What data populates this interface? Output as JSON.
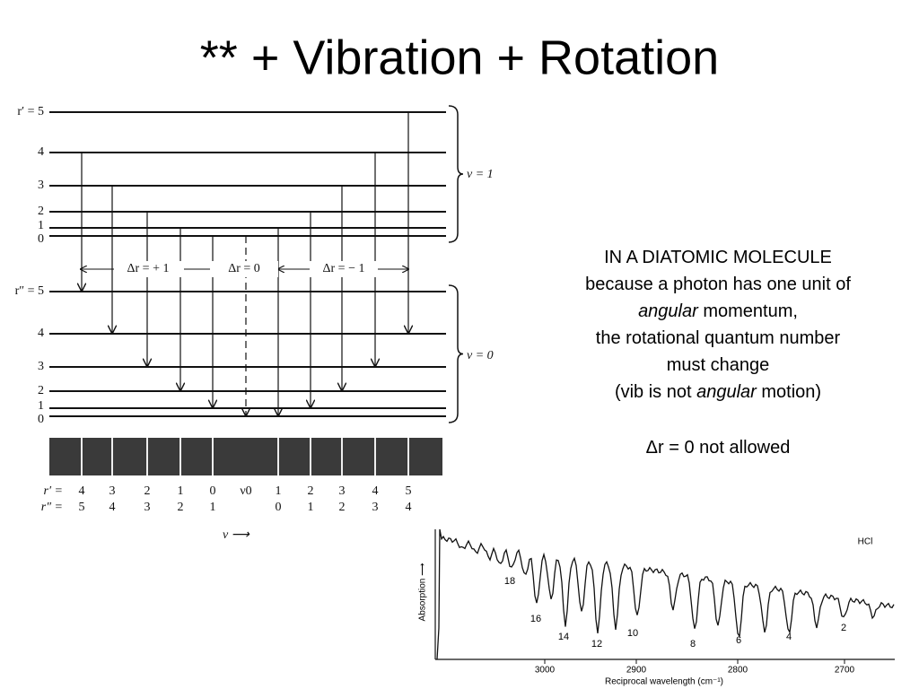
{
  "title": "**   + Vibration + Rotation",
  "diagram": {
    "upper_levels": [
      "r′ = 5",
      "4",
      "3",
      "2",
      "1",
      "0"
    ],
    "upper_label": "v = 1",
    "lower_levels": [
      "r″ = 5",
      "4",
      "3",
      "2",
      "1",
      "0"
    ],
    "lower_label": "v = 0",
    "transition_labels": [
      "Δr = + 1",
      "Δr = 0",
      "Δr = − 1"
    ],
    "r_prime_row": {
      "label": "r′ =",
      "values": [
        "4",
        "3",
        "2",
        "1",
        "0",
        "ν0",
        "1",
        "2",
        "3",
        "4",
        "5"
      ]
    },
    "r_double_row": {
      "label": "r″ =",
      "values": [
        "5",
        "4",
        "3",
        "2",
        "1",
        "0",
        "1",
        "2",
        "3",
        "4"
      ]
    },
    "axis_label": "ν ⟶"
  },
  "text": {
    "lines": [
      [
        "IN A DIATOMIC MOLECULE"
      ],
      [
        "because a photon has one unit of"
      ],
      [
        {
          "em": "angular"
        },
        " momentum,"
      ],
      [
        "the rotational quantum number"
      ],
      [
        "must change"
      ],
      [
        "(vib is not ",
        {
          "em": "angular"
        },
        " motion)"
      ]
    ],
    "note": "Δr = 0 not allowed"
  },
  "spectrum": {
    "compound": "HCl",
    "ylabel": "Absorption ⟶",
    "xlabel": "Reciprocal wavelength (cm⁻¹)",
    "xticks": [
      "3000",
      "2900",
      "2800",
      "2700"
    ],
    "peak_labels": [
      "18",
      "16",
      "14",
      "12",
      "10",
      "8",
      "6",
      "4",
      "2"
    ]
  }
}
